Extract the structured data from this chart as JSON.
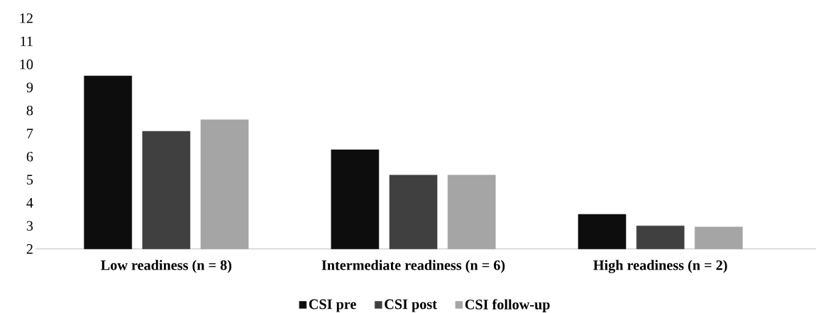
{
  "chart_data": {
    "type": "bar",
    "categories": [
      "Low readiness (n = 8)",
      "Intermediate readiness (n = 6)",
      "High readiness (n = 2)"
    ],
    "series": [
      {
        "name": "CSI pre",
        "color": "#0d0d0d",
        "values": [
          9.5,
          6.3,
          3.5
        ]
      },
      {
        "name": "CSI post",
        "color": "#404040",
        "values": [
          7.1,
          5.2,
          3.0
        ]
      },
      {
        "name": "CSI follow-up",
        "color": "#a5a5a5",
        "values": [
          7.6,
          5.2,
          2.95
        ]
      }
    ],
    "ylim": [
      2,
      12
    ],
    "yticks": [
      2,
      3,
      4,
      5,
      6,
      7,
      8,
      9,
      10,
      11,
      12
    ],
    "legend": "bottom"
  }
}
